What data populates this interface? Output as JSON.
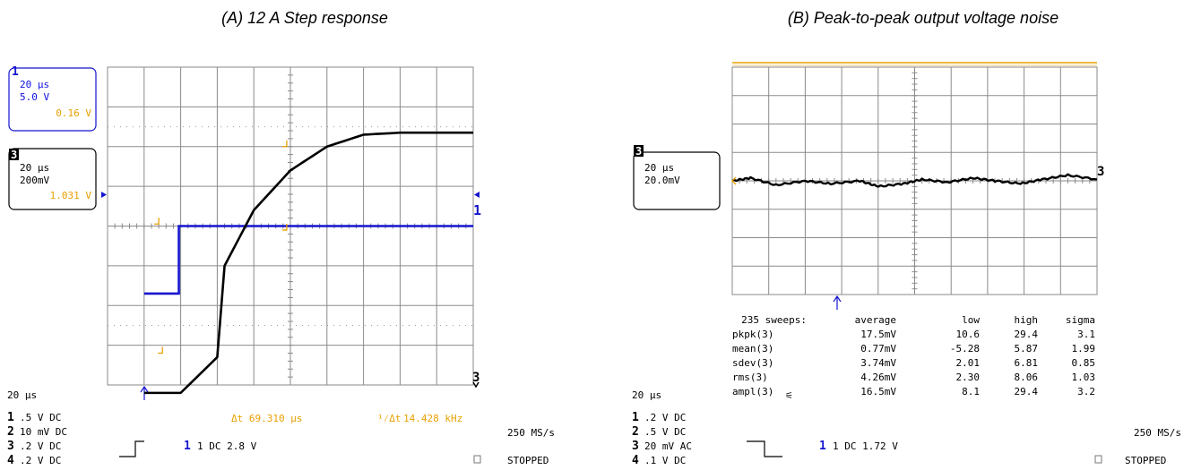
{
  "colors": {
    "ch1": "#1515d0",
    "ch3": "#000000",
    "cursor": "#e8a000",
    "grid": "#8a8a8a"
  },
  "panel_a": {
    "title": "(A) 12 A Step response",
    "ch1_box": {
      "tag": "1",
      "line1": "20 μs",
      "line2": "5.0 V",
      "line3": "0.16 V"
    },
    "ch3_box": {
      "tag": "3",
      "line1": "20 μs",
      "line2": "200mV",
      "line3": "1.031 V"
    },
    "timebase": "20 μs",
    "rows": [
      {
        "n": "1",
        "text": ".5  V  DC"
      },
      {
        "n": "2",
        "text": "10 mV  DC"
      },
      {
        "n": "3",
        "text": ".2  V  DC"
      },
      {
        "n": "4",
        "text": ".2  V  DC"
      }
    ],
    "trigger": "1 DC 2.8 V",
    "delta_t": "Δt     69.310 μs",
    "inv_dt": "14.428 kHz",
    "inv_dt_symbol": "¹⁄Δt",
    "sample_rate": "250 MS/s",
    "status": "STOPPED",
    "ch1_marker": "1",
    "ch3_marker": "3"
  },
  "panel_b": {
    "title": "(B) Peak-to-peak output voltage noise",
    "ch3_box": {
      "tag": "3",
      "line1": "20 μs",
      "line2": "20.0mV"
    },
    "timebase": "20 μs",
    "rows": [
      {
        "n": "1",
        "text": ".2  V  DC"
      },
      {
        "n": "2",
        "text": ".5  V  DC"
      },
      {
        "n": "3",
        "text": "20 mV  AC"
      },
      {
        "n": "4",
        "text": ".1  V  DC"
      }
    ],
    "trigger": "1 DC 1.72 V",
    "sample_rate": "250 MS/s",
    "status": "STOPPED",
    "ch3_marker": "3",
    "stats": {
      "sweeps_label": "235 sweeps:",
      "headers": [
        "average",
        "low",
        "high",
        "sigma"
      ],
      "rows": [
        {
          "name": "pkpk(3)",
          "average": "17.5mV",
          "low": "10.6",
          "high": "29.4",
          "sigma": "3.1"
        },
        {
          "name": "mean(3)",
          "average": "0.77mV",
          "low": "-5.28",
          "high": "5.87",
          "sigma": "1.99"
        },
        {
          "name": "sdev(3)",
          "average": "3.74mV",
          "low": "2.01",
          "high": "6.81",
          "sigma": "0.85"
        },
        {
          "name": "rms(3)",
          "average": "4.26mV",
          "low": "2.30",
          "high": "8.06",
          "sigma": "1.03"
        },
        {
          "name": "ampl(3)",
          "average": "16.5mV",
          "low": "8.1",
          "high": "29.4",
          "sigma": "3.2"
        }
      ]
    }
  },
  "chart_data": [
    {
      "type": "line",
      "title": "(A) 12 A Step response",
      "x_unit_per_div": "20 μs",
      "series": [
        {
          "name": "1",
          "y_div": [
            -1.7,
            -1.7,
            0.0,
            0.0,
            0.0,
            0.0,
            0.0,
            0.0,
            0.0,
            0.0,
            0.0,
            0.0
          ]
        },
        {
          "name": "3",
          "y_div": [
            -4.2,
            -4.2,
            -4.2,
            -3.3,
            -1.0,
            0.4,
            1.4,
            2.0,
            2.3,
            2.35,
            2.35,
            2.35
          ]
        }
      ],
      "x_div": [
        -4.0,
        -3.05,
        -3.0,
        -2.0,
        -1.8,
        -1.0,
        0.0,
        1.0,
        2.0,
        3.0,
        3.5,
        5.0
      ]
    },
    {
      "type": "line",
      "title": "(B) Peak-to-peak output voltage noise",
      "x_unit_per_div": "20 μs",
      "series": [
        {
          "name": "3",
          "y_div": [
            0.0,
            0.1,
            -0.15,
            0.0,
            -0.1,
            0.0,
            -0.2,
            -0.1,
            0.05,
            -0.05,
            0.1,
            0.0,
            -0.1,
            0.05,
            0.2,
            0.05
          ]
        }
      ],
      "x_div": [
        -5.0,
        -4.5,
        -3.8,
        -3.0,
        -2.3,
        -1.5,
        -1.0,
        -0.3,
        0.2,
        0.9,
        1.6,
        2.2,
        2.9,
        3.5,
        4.2,
        5.0
      ]
    }
  ]
}
